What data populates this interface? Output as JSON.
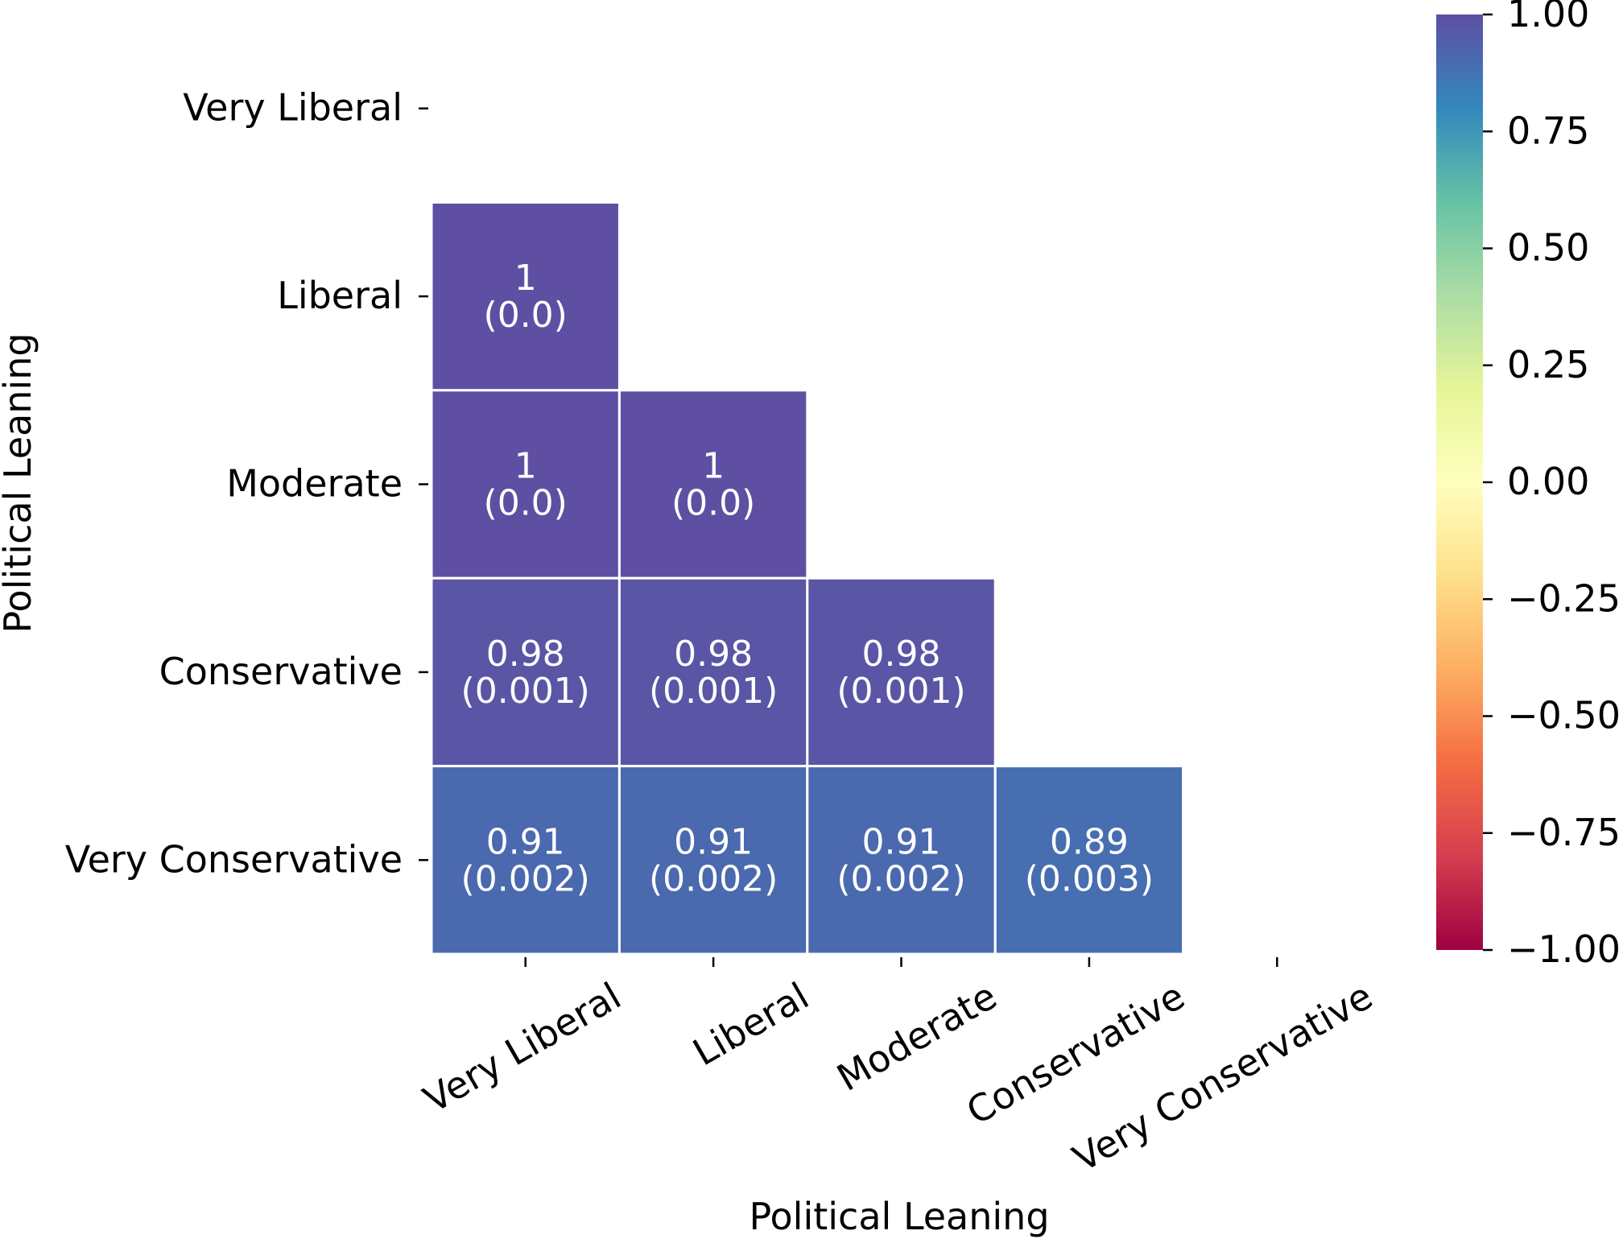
{
  "chart_data": {
    "type": "heatmap",
    "xlabel": "Political Leaning",
    "ylabel": "Political Leaning",
    "categories": [
      "Very Liberal",
      "Liberal",
      "Moderate",
      "Conservative",
      "Very Conservative"
    ],
    "mask": "upper-triangle-and-diagonal",
    "cells": [
      {
        "row": "Liberal",
        "col": "Very Liberal",
        "value": 1,
        "value_label": "1",
        "p_label": "(0.0)"
      },
      {
        "row": "Moderate",
        "col": "Very Liberal",
        "value": 1,
        "value_label": "1",
        "p_label": "(0.0)"
      },
      {
        "row": "Moderate",
        "col": "Liberal",
        "value": 1,
        "value_label": "1",
        "p_label": "(0.0)"
      },
      {
        "row": "Conservative",
        "col": "Very Liberal",
        "value": 0.98,
        "value_label": "0.98",
        "p_label": "(0.001)"
      },
      {
        "row": "Conservative",
        "col": "Liberal",
        "value": 0.98,
        "value_label": "0.98",
        "p_label": "(0.001)"
      },
      {
        "row": "Conservative",
        "col": "Moderate",
        "value": 0.98,
        "value_label": "0.98",
        "p_label": "(0.001)"
      },
      {
        "row": "Very Conservative",
        "col": "Very Liberal",
        "value": 0.91,
        "value_label": "0.91",
        "p_label": "(0.002)"
      },
      {
        "row": "Very Conservative",
        "col": "Liberal",
        "value": 0.91,
        "value_label": "0.91",
        "p_label": "(0.002)"
      },
      {
        "row": "Very Conservative",
        "col": "Moderate",
        "value": 0.91,
        "value_label": "0.91",
        "p_label": "(0.002)"
      },
      {
        "row": "Very Conservative",
        "col": "Conservative",
        "value": 0.89,
        "value_label": "0.89",
        "p_label": "(0.003)"
      }
    ],
    "colorbar": {
      "colormap": "Spectral",
      "range": [
        -1,
        1
      ],
      "ticks": [
        1,
        0.75,
        0.5,
        0.25,
        0,
        -0.25,
        -0.5,
        -0.75,
        -1
      ],
      "tick_labels": [
        "1.00",
        "0.75",
        "0.50",
        "0.25",
        "0.00",
        "−0.25",
        "−0.50",
        "−0.75",
        "−1.00"
      ]
    },
    "grid": false
  }
}
